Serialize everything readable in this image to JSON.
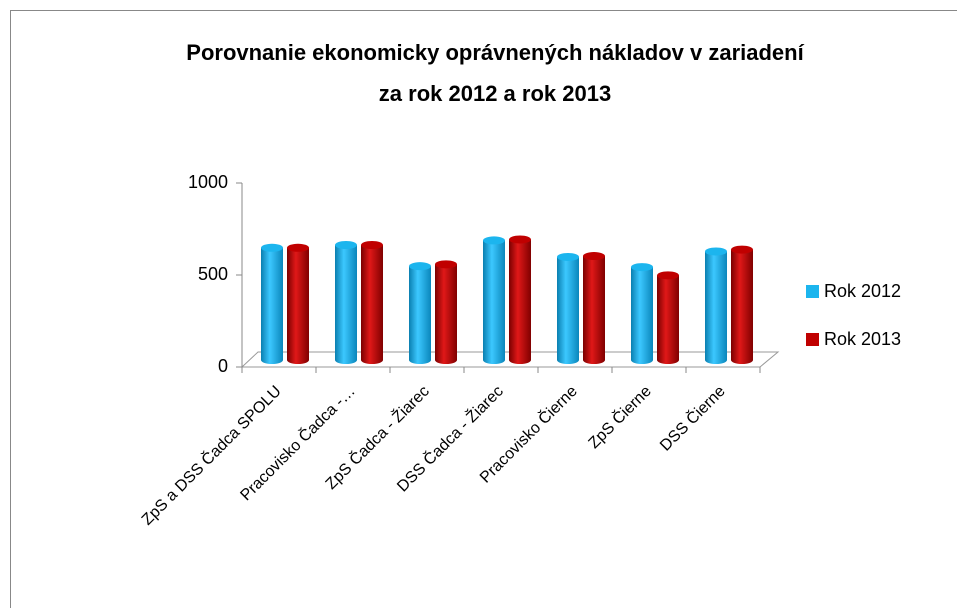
{
  "chart_data": {
    "type": "bar3d",
    "title": [
      "Porovnanie ekonomicky oprávnených nákladov v zariadení",
      "za rok 2012 a rok 2013"
    ],
    "categories": [
      "ZpS a DSS Čadca SPOLU",
      "Pracovisko Čadca -…",
      "ZpS Čadca - Žiarec",
      "DSS Čadca - Žiarec",
      "Pracovisko Čierne",
      "ZpS Čierne",
      "DSS Čierne"
    ],
    "series": [
      {
        "name": "Rok 2012",
        "color": "#1cb5ee",
        "values": [
          610,
          625,
          510,
          650,
          560,
          505,
          590
        ]
      },
      {
        "name": "Rok 2013",
        "color": "#c00000",
        "values": [
          610,
          625,
          520,
          655,
          565,
          460,
          600
        ]
      }
    ],
    "ylim": [
      0,
      1000
    ],
    "yticks": [
      0,
      500,
      1000
    ],
    "legend": "right"
  }
}
